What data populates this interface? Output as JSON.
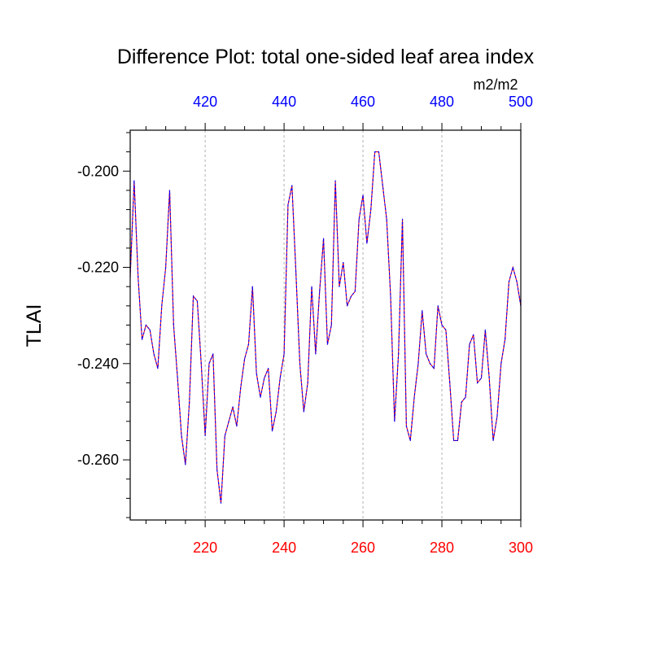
{
  "chart_data": {
    "type": "line",
    "title": "Difference Plot: total one-sided leaf area index",
    "ylabel": "TLAI",
    "units_label": "m2/m2",
    "colors": {
      "bottom_axis": "#ff0000",
      "top_axis": "#0000ff",
      "line_red": "#ff0000",
      "line_blue": "#0000ff",
      "grid": "#b0b0b0",
      "frame": "#000000"
    },
    "bottom_axis": {
      "xlim": [
        201,
        300
      ],
      "ticks": [
        220,
        240,
        260,
        280,
        300
      ],
      "tick_labels": [
        "220",
        "240",
        "260",
        "280",
        "300"
      ]
    },
    "top_axis": {
      "xlim": [
        401,
        500
      ],
      "ticks": [
        420,
        440,
        460,
        480,
        500
      ],
      "tick_labels": [
        "420",
        "440",
        "460",
        "480",
        "500"
      ]
    },
    "y_axis": {
      "ylim": [
        -0.2725,
        -0.1915
      ],
      "ticks": [
        -0.2,
        -0.22,
        -0.24,
        -0.26
      ],
      "tick_labels": [
        "-0.200",
        "-0.220",
        "-0.240",
        "-0.260"
      ]
    },
    "grid": "vertical dashed at major x ticks",
    "series": [
      {
        "x": [
          201,
          202,
          203,
          204,
          205,
          206,
          207,
          208,
          209,
          210,
          211,
          212,
          213,
          214,
          215,
          216,
          217,
          218,
          219,
          220,
          221,
          222,
          223,
          224,
          225,
          226,
          227,
          228,
          229,
          230,
          231,
          232,
          233,
          234,
          235,
          236,
          237,
          238,
          239,
          240,
          241,
          242,
          243,
          244,
          245,
          246,
          247,
          248,
          249,
          250,
          251,
          252,
          253,
          254,
          255,
          256,
          257,
          258,
          259,
          260,
          261,
          262,
          263,
          264,
          265,
          266,
          267,
          268,
          269,
          270,
          271,
          272,
          273,
          274,
          275,
          276,
          277,
          278,
          279,
          280,
          281,
          282,
          283,
          284,
          285,
          286,
          287,
          288,
          289,
          290,
          291,
          292,
          293,
          294,
          295,
          296,
          297,
          298,
          299,
          300
        ],
        "values": [
          -0.222,
          -0.202,
          -0.222,
          -0.235,
          -0.232,
          -0.233,
          -0.238,
          -0.241,
          -0.228,
          -0.22,
          -0.204,
          -0.232,
          -0.243,
          -0.255,
          -0.261,
          -0.248,
          -0.226,
          -0.227,
          -0.24,
          -0.255,
          -0.24,
          -0.238,
          -0.262,
          -0.269,
          -0.255,
          -0.252,
          -0.249,
          -0.253,
          -0.245,
          -0.239,
          -0.236,
          -0.224,
          -0.242,
          -0.247,
          -0.243,
          -0.241,
          -0.254,
          -0.25,
          -0.243,
          -0.238,
          -0.207,
          -0.203,
          -0.221,
          -0.24,
          -0.25,
          -0.244,
          -0.224,
          -0.238,
          -0.225,
          -0.214,
          -0.236,
          -0.232,
          -0.202,
          -0.224,
          -0.219,
          -0.228,
          -0.226,
          -0.225,
          -0.21,
          -0.205,
          -0.215,
          -0.208,
          -0.196,
          -0.196,
          -0.203,
          -0.21,
          -0.226,
          -0.252,
          -0.238,
          -0.21,
          -0.253,
          -0.256,
          -0.247,
          -0.24,
          -0.229,
          -0.238,
          -0.24,
          -0.241,
          -0.228,
          -0.232,
          -0.233,
          -0.244,
          -0.256,
          -0.256,
          -0.248,
          -0.247,
          -0.236,
          -0.234,
          -0.244,
          -0.243,
          -0.233,
          -0.243,
          -0.256,
          -0.251,
          -0.24,
          -0.235,
          -0.223,
          -0.22,
          -0.223,
          -0.228
        ]
      }
    ]
  }
}
